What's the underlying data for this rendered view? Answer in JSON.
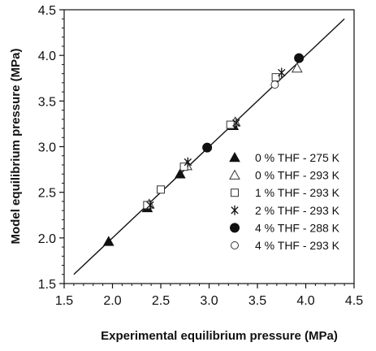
{
  "chart_data": {
    "type": "scatter",
    "title": "",
    "xlabel": "Experimental equilibrium pressure (MPa)",
    "ylabel": "Model equilibrium pressure (MPa)",
    "xlim": [
      1.5,
      4.5
    ],
    "ylim": [
      1.5,
      4.5
    ],
    "xticks": [
      "1.5",
      "2.0",
      "2.5",
      "3.0",
      "3.5",
      "4.0",
      "4.5"
    ],
    "yticks": [
      "1.5",
      "2.0",
      "2.5",
      "3.0",
      "3.5",
      "4.0",
      "4.5"
    ],
    "grid": false,
    "legend_position": "right",
    "reference_line": {
      "type": "parity",
      "from": [
        1.6,
        1.6
      ],
      "to": [
        4.4,
        4.4
      ]
    },
    "series": [
      {
        "name": "0 % THF - 275 K",
        "marker": "filled-triangle",
        "points": [
          [
            1.96,
            1.96
          ],
          [
            2.36,
            2.33
          ],
          [
            2.7,
            2.7
          ],
          [
            3.25,
            3.23
          ]
        ]
      },
      {
        "name": "0 % THF - 293 K",
        "marker": "open-triangle",
        "points": [
          [
            2.38,
            2.37
          ],
          [
            2.77,
            2.79
          ],
          [
            3.27,
            3.27
          ],
          [
            3.91,
            3.86
          ]
        ]
      },
      {
        "name": "1 % THF - 293 K",
        "marker": "open-square",
        "points": [
          [
            2.36,
            2.36
          ],
          [
            2.5,
            2.53
          ],
          [
            2.74,
            2.78
          ],
          [
            3.22,
            3.24
          ],
          [
            3.69,
            3.76
          ]
        ]
      },
      {
        "name": "2 % THF - 293 K",
        "marker": "star",
        "points": [
          [
            2.39,
            2.36
          ],
          [
            2.78,
            2.83
          ],
          [
            3.28,
            3.26
          ],
          [
            3.75,
            3.81
          ]
        ]
      },
      {
        "name": "4 % THF - 288 K",
        "marker": "filled-circle",
        "points": [
          [
            2.98,
            2.99
          ],
          [
            3.93,
            3.97
          ]
        ]
      },
      {
        "name": "4 % THF - 293 K",
        "marker": "open-circle",
        "points": [
          [
            3.68,
            3.68
          ]
        ]
      }
    ]
  }
}
